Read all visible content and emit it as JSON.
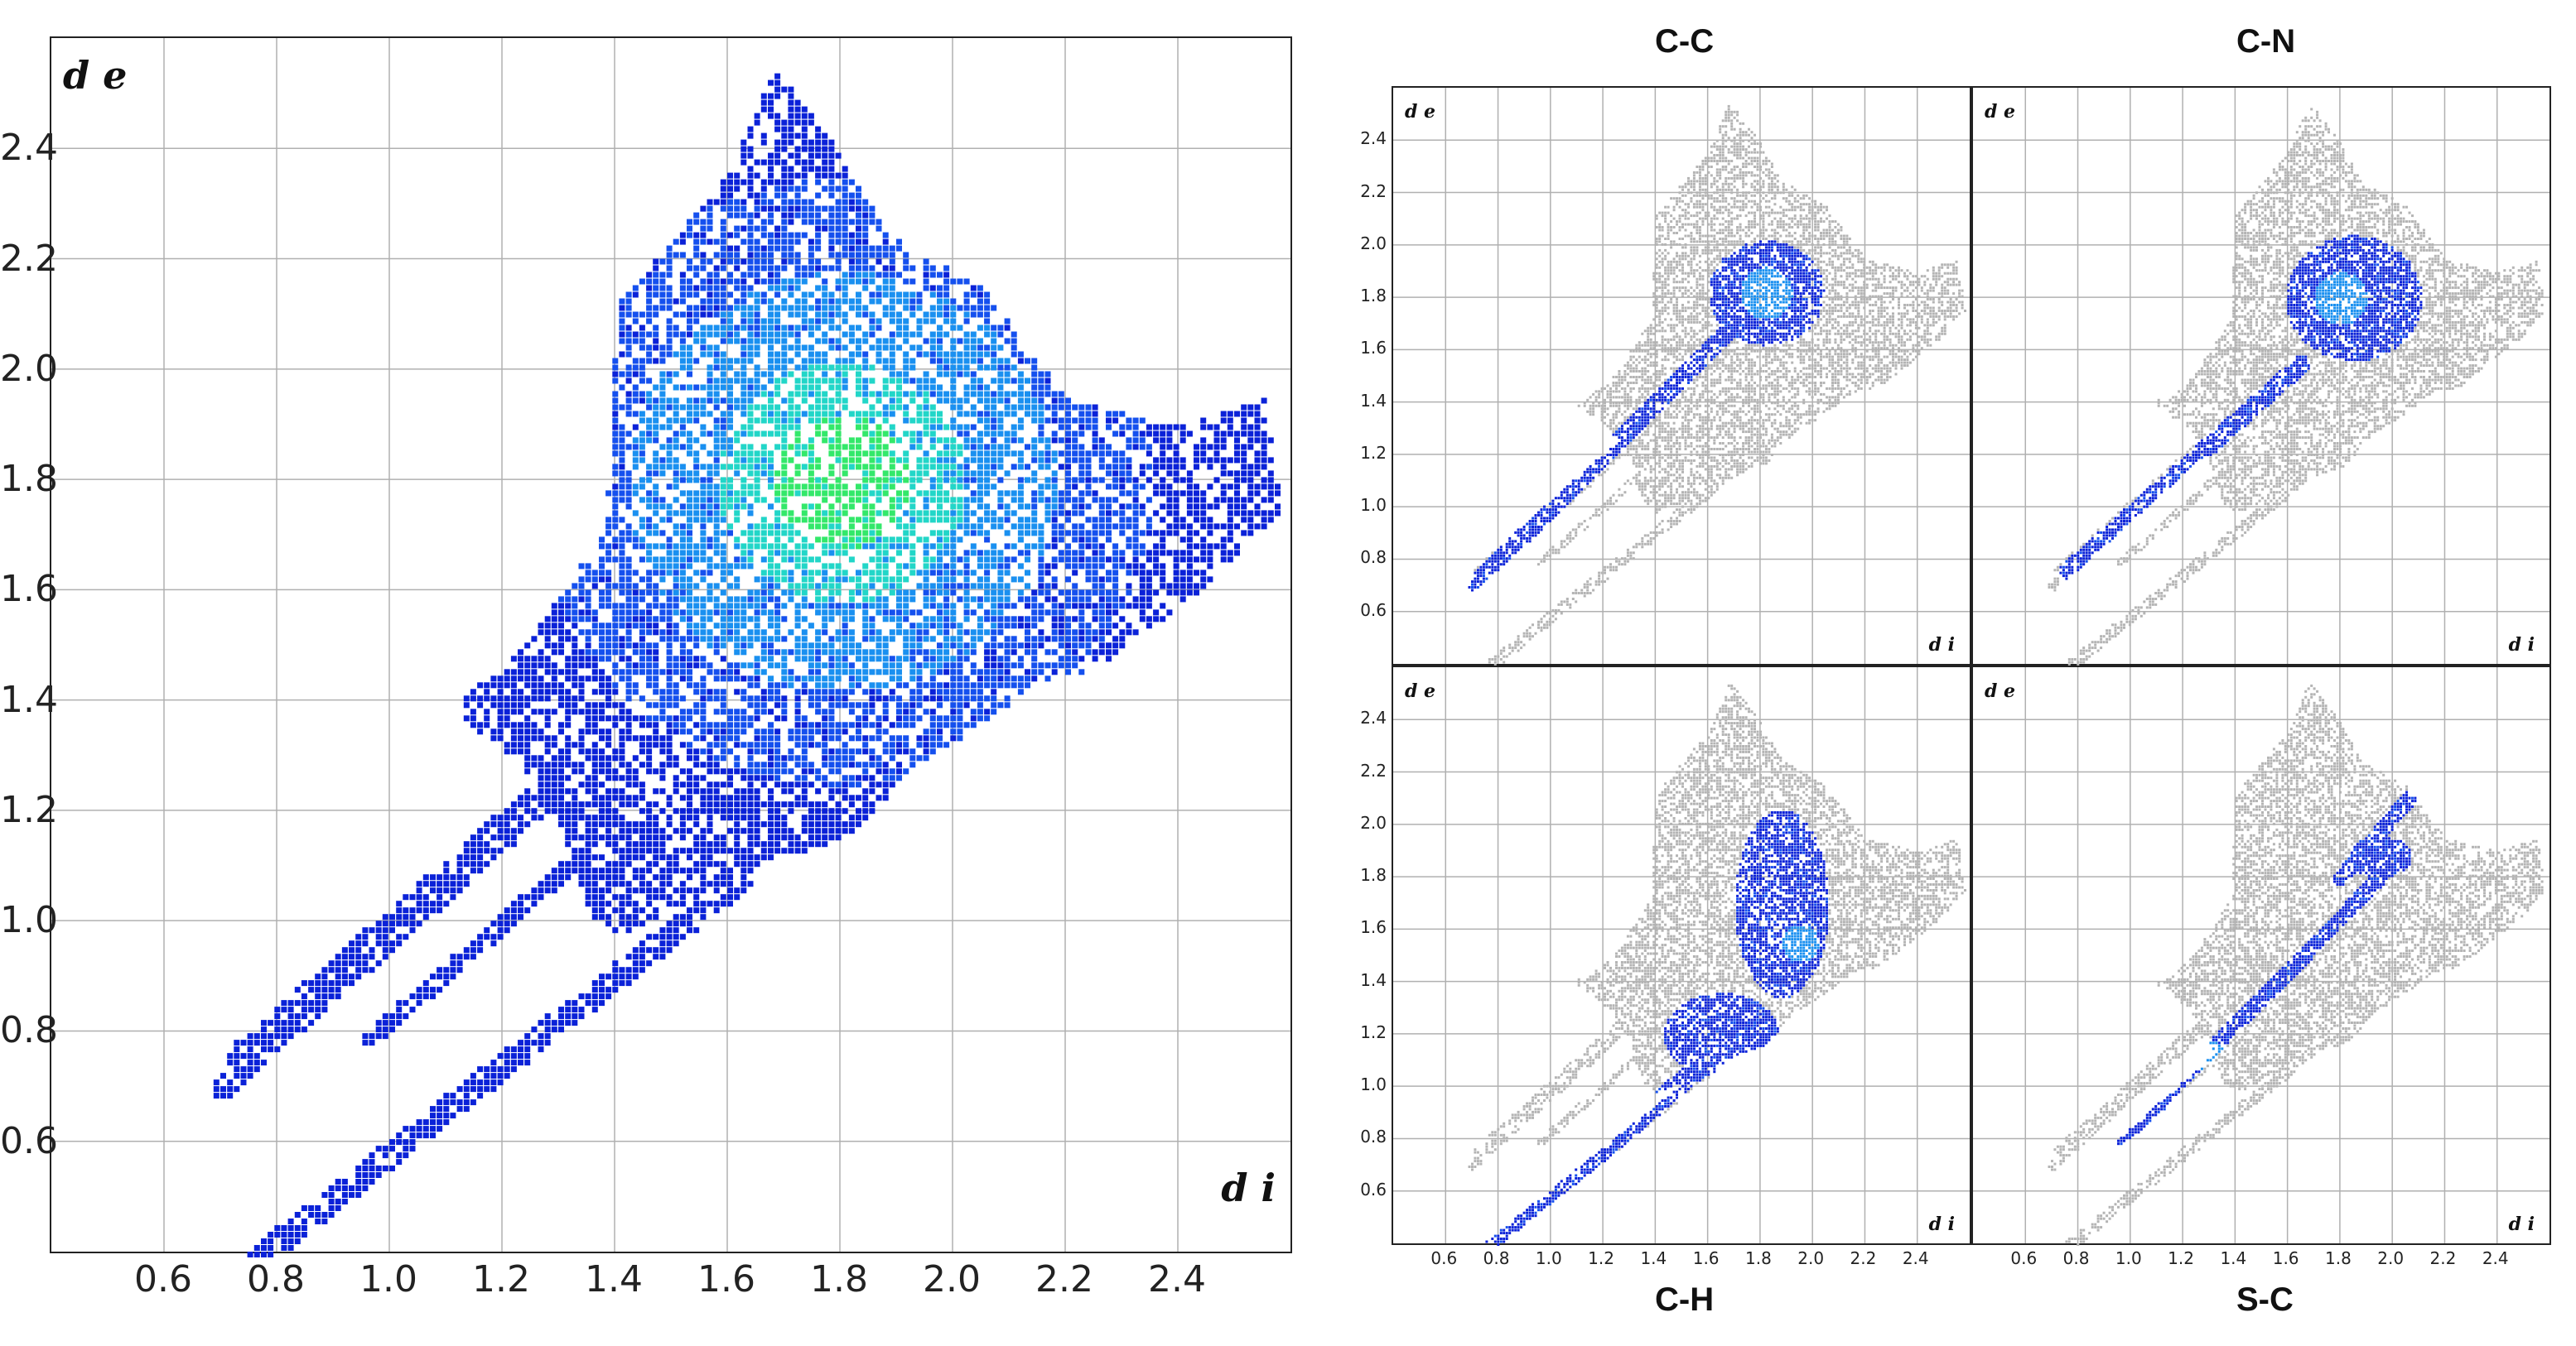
{
  "figure": {
    "gray_color": "#b4b4b4",
    "colormap": [
      "#0b22d8",
      "#1550ee",
      "#1a90f0",
      "#22d6c8",
      "#33e86a"
    ]
  },
  "chart_data": [
    {
      "type": "scatter",
      "name": "Full fingerprint plot",
      "title": "",
      "xlabel": "d i",
      "ylabel": "d e",
      "xlim": [
        0.4,
        2.6
      ],
      "ylim": [
        0.4,
        2.6
      ],
      "xticks": [
        "0.6",
        "0.8",
        "1.0",
        "1.2",
        "1.4",
        "1.6",
        "1.8",
        "2.0",
        "2.2",
        "2.4"
      ],
      "yticks": [
        "0.6",
        "0.8",
        "1.0",
        "1.2",
        "1.4",
        "1.6",
        "1.8",
        "2.0",
        "2.2",
        "2.4"
      ],
      "grid": true,
      "mode": "full",
      "peak_density": [
        1.8,
        1.8
      ]
    },
    {
      "type": "scatter",
      "name": "C-C contacts",
      "title": "C-C",
      "xlabel": "d i",
      "ylabel": "d e",
      "xlim": [
        0.4,
        2.6
      ],
      "ylim": [
        0.4,
        2.6
      ],
      "xticks": [],
      "yticks": [
        "0.6",
        "0.8",
        "1.0",
        "1.2",
        "1.4",
        "1.6",
        "1.8",
        "2.0",
        "2.2",
        "2.4"
      ],
      "grid": true,
      "highlight": "cc"
    },
    {
      "type": "scatter",
      "name": "C-N contacts",
      "title": "C-N",
      "xlabel": "d i",
      "ylabel": "d e",
      "xlim": [
        0.4,
        2.6
      ],
      "ylim": [
        0.4,
        2.6
      ],
      "xticks": [],
      "yticks": [],
      "grid": true,
      "highlight": "cn"
    },
    {
      "type": "scatter",
      "name": "C-H contacts",
      "title": "C-H",
      "xlabel": "d i",
      "ylabel": "d e",
      "xlim": [
        0.4,
        2.6
      ],
      "ylim": [
        0.4,
        2.6
      ],
      "xticks": [
        "0.6",
        "0.8",
        "1.0",
        "1.2",
        "1.4",
        "1.6",
        "1.8",
        "2.0",
        "2.2",
        "2.4"
      ],
      "yticks": [
        "0.6",
        "0.8",
        "1.0",
        "1.2",
        "1.4",
        "1.6",
        "1.8",
        "2.0",
        "2.2",
        "2.4"
      ],
      "grid": true,
      "highlight": "ch"
    },
    {
      "type": "scatter",
      "name": "S-C contacts",
      "title": "S-C",
      "xlabel": "d i",
      "ylabel": "d e",
      "xlim": [
        0.4,
        2.6
      ],
      "ylim": [
        0.4,
        2.6
      ],
      "xticks": [
        "0.6",
        "0.8",
        "1.0",
        "1.2",
        "1.4",
        "1.6",
        "1.8",
        "2.0",
        "2.2",
        "2.4"
      ],
      "yticks": [],
      "grid": true,
      "highlight": "sc"
    }
  ]
}
